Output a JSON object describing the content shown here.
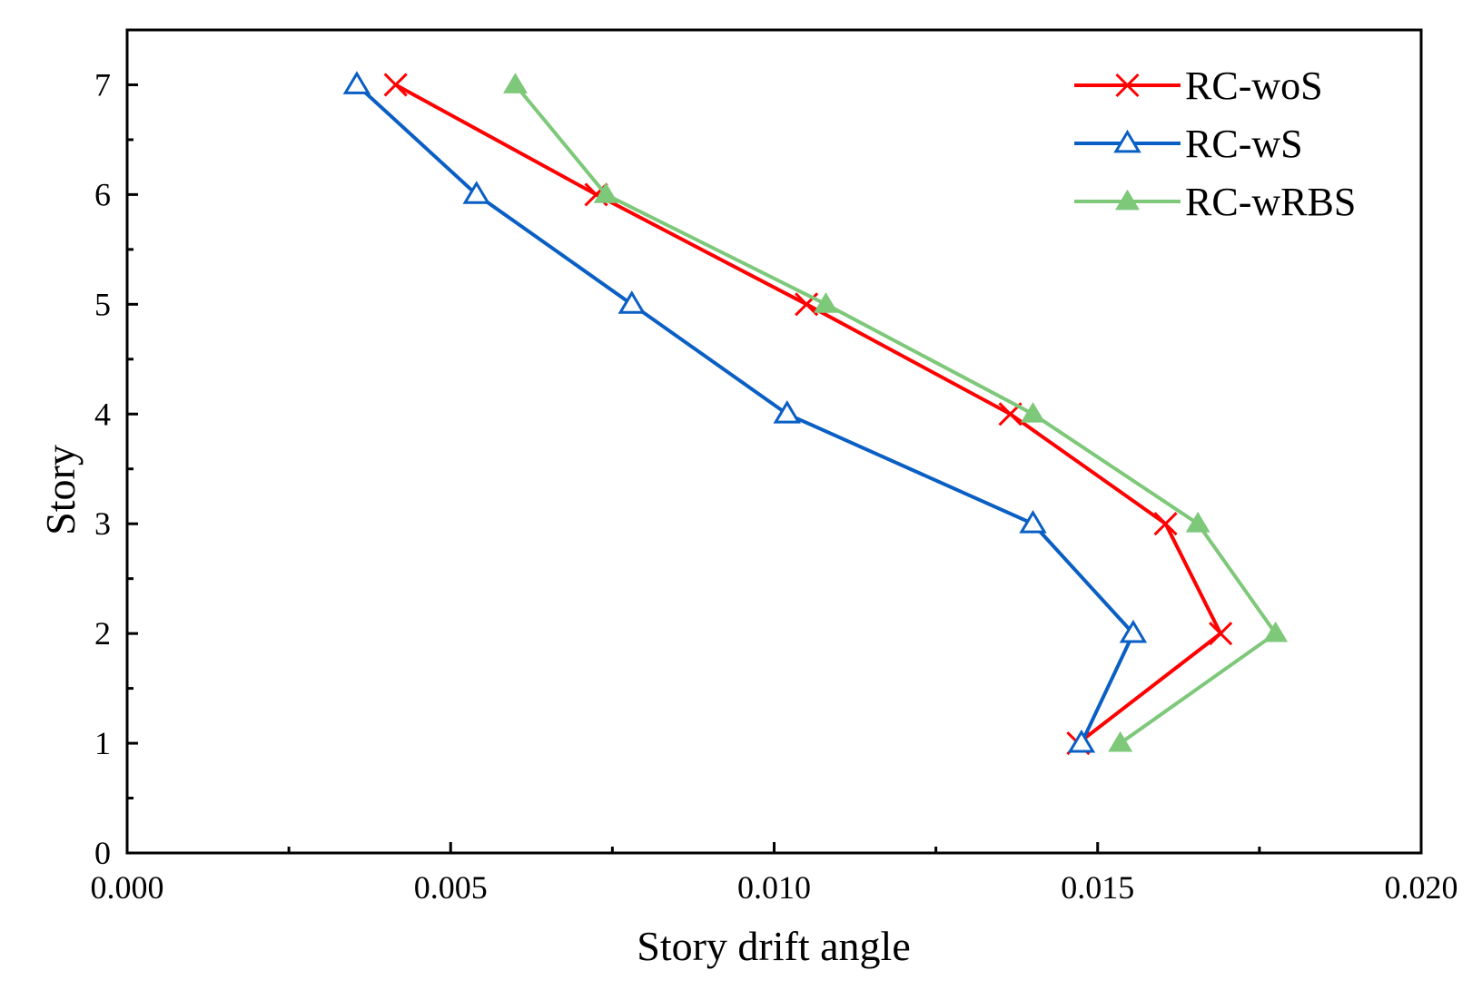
{
  "chart_data": {
    "type": "line",
    "title": "",
    "xlabel": "Story drift angle",
    "ylabel": "Story",
    "xlim": [
      0.0,
      0.02
    ],
    "ylim": [
      0,
      7.5
    ],
    "x_ticks": [
      0.0,
      0.005,
      0.01,
      0.015,
      0.02
    ],
    "x_tick_labels": [
      "0.000",
      "0.005",
      "0.010",
      "0.015",
      "0.020"
    ],
    "x_minor_ticks": [
      0.0025,
      0.0075,
      0.0125,
      0.0175
    ],
    "y_ticks": [
      0,
      1,
      2,
      3,
      4,
      5,
      6,
      7
    ],
    "y_tick_labels": [
      "0",
      "1",
      "2",
      "3",
      "4",
      "5",
      "6",
      "7"
    ],
    "y_minor_ticks": [
      0.5,
      1.5,
      2.5,
      3.5,
      4.5,
      5.5,
      6.5
    ],
    "grid": false,
    "legend_position": "top-right",
    "series": [
      {
        "name": "RC-woS",
        "color": "#ff0000",
        "marker": "x",
        "x": [
          0.00415,
          0.00725,
          0.0105,
          0.01365,
          0.01605,
          0.0169,
          0.0147
        ],
        "y": [
          7,
          6,
          5,
          4,
          3,
          2,
          1
        ]
      },
      {
        "name": "RC-wS",
        "color": "#0a5fc4",
        "marker": "triangle-open",
        "x": [
          0.00355,
          0.0054,
          0.0078,
          0.0102,
          0.014,
          0.01555,
          0.01475
        ],
        "y": [
          7,
          6,
          5,
          4,
          3,
          2,
          1
        ]
      },
      {
        "name": "RC-wRBS",
        "color": "#7ec87a",
        "marker": "triangle-filled",
        "x": [
          0.006,
          0.0074,
          0.0108,
          0.014,
          0.01655,
          0.01775,
          0.01535
        ],
        "y": [
          7,
          6,
          5,
          4,
          3,
          2,
          1
        ]
      }
    ]
  }
}
